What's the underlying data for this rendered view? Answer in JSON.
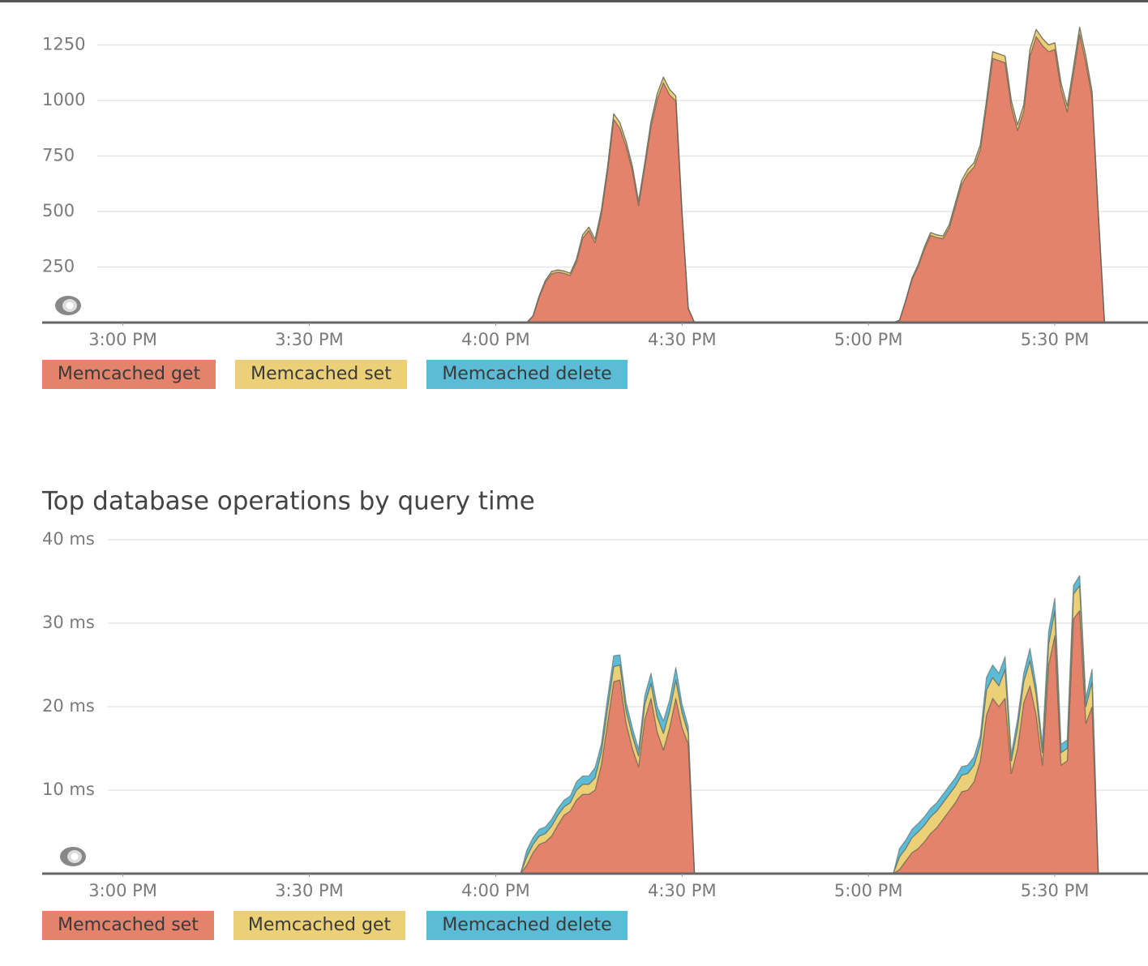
{
  "chart_data": [
    {
      "type": "stacked-area",
      "x": [
        "14:48",
        "16:04",
        "16:05",
        "16:06",
        "16:07",
        "16:08",
        "16:09",
        "16:10",
        "16:11",
        "16:12",
        "16:13",
        "16:14",
        "16:15",
        "16:16",
        "16:17",
        "16:18",
        "16:19",
        "16:20",
        "16:21",
        "16:22",
        "16:23",
        "16:24",
        "16:25",
        "16:26",
        "16:27",
        "16:28",
        "16:29",
        "16:30",
        "16:31",
        "16:32",
        "17:04",
        "17:05",
        "17:06",
        "17:07",
        "17:08",
        "17:09",
        "17:10",
        "17:11",
        "17:12",
        "17:13",
        "17:14",
        "17:15",
        "17:16",
        "17:17",
        "17:18",
        "17:19",
        "17:20",
        "17:21",
        "17:22",
        "17:23",
        "17:24",
        "17:25",
        "17:26",
        "17:27",
        "17:28",
        "17:29",
        "17:30",
        "17:31",
        "17:32",
        "17:33",
        "17:34",
        "17:35",
        "17:36",
        "17:37",
        "17:38"
      ],
      "series": [
        {
          "name": "Memcached get",
          "color": "#e5826b",
          "values": [
            0,
            0,
            0,
            28,
            115,
            182,
            220,
            227,
            222,
            212,
            273,
            380,
            415,
            360,
            487,
            680,
            915,
            875,
            793,
            685,
            527,
            700,
            883,
            1005,
            1080,
            1025,
            998,
            488,
            62,
            0,
            0,
            10,
            97,
            194,
            252,
            330,
            393,
            383,
            378,
            426,
            524,
            622,
            670,
            700,
            778,
            975,
            1190,
            1180,
            1170,
            972,
            865,
            952,
            1200,
            1288,
            1248,
            1220,
            1230,
            1052,
            949,
            1122,
            1300,
            1170,
            1012,
            485,
            0
          ]
        },
        {
          "name": "Memcached set",
          "color": "#ecd078",
          "values": [
            0,
            0,
            0,
            2,
            5,
            8,
            10,
            10,
            10,
            10,
            12,
            15,
            15,
            15,
            18,
            20,
            25,
            25,
            22,
            20,
            18,
            20,
            22,
            25,
            25,
            25,
            22,
            12,
            3,
            0,
            0,
            0,
            3,
            6,
            8,
            10,
            12,
            12,
            12,
            14,
            16,
            18,
            20,
            20,
            22,
            25,
            30,
            30,
            30,
            28,
            25,
            28,
            30,
            32,
            32,
            30,
            30,
            28,
            26,
            28,
            30,
            30,
            28,
            15,
            0
          ]
        },
        {
          "name": "Memcached delete",
          "color": "#5bbcd8",
          "values": [
            0,
            0,
            0,
            0,
            0,
            0,
            0,
            0,
            0,
            0,
            0,
            0,
            0,
            0,
            0,
            0,
            0,
            0,
            0,
            0,
            0,
            0,
            0,
            0,
            0,
            0,
            0,
            0,
            0,
            0,
            0,
            0,
            0,
            0,
            0,
            0,
            0,
            0,
            0,
            0,
            0,
            0,
            0,
            0,
            0,
            0,
            0,
            0,
            0,
            0,
            0,
            0,
            0,
            0,
            0,
            0,
            0,
            0,
            0,
            0,
            0,
            0,
            0,
            0,
            0
          ]
        }
      ],
      "xlim": [
        "14:47",
        "17:45"
      ],
      "xticks": [
        {
          "value": "15:00",
          "label": "3:00 PM"
        },
        {
          "value": "15:30",
          "label": "3:30 PM"
        },
        {
          "value": "16:00",
          "label": "4:00 PM"
        },
        {
          "value": "16:30",
          "label": "4:30 PM"
        },
        {
          "value": "17:00",
          "label": "5:00 PM"
        },
        {
          "value": "17:30",
          "label": "5:30 PM"
        }
      ],
      "ylim": [
        0,
        1400
      ],
      "yticks": [
        250,
        500,
        750,
        1000,
        1250
      ],
      "grid": true
    },
    {
      "type": "stacked-area",
      "title": "Top database operations by query time",
      "x": [
        "14:48",
        "16:04",
        "16:05",
        "16:06",
        "16:07",
        "16:08",
        "16:09",
        "16:10",
        "16:11",
        "16:12",
        "16:13",
        "16:14",
        "16:15",
        "16:16",
        "16:17",
        "16:18",
        "16:19",
        "16:20",
        "16:21",
        "16:22",
        "16:23",
        "16:24",
        "16:25",
        "16:26",
        "16:27",
        "16:28",
        "16:29",
        "16:30",
        "16:31",
        "16:32",
        "17:04",
        "17:05",
        "17:06",
        "17:07",
        "17:08",
        "17:09",
        "17:10",
        "17:11",
        "17:12",
        "17:13",
        "17:14",
        "17:15",
        "17:16",
        "17:17",
        "17:18",
        "17:19",
        "17:20",
        "17:21",
        "17:22",
        "17:23",
        "17:24",
        "17:25",
        "17:26",
        "17:27",
        "17:28",
        "17:29",
        "17:30",
        "17:31",
        "17:32",
        "17:33",
        "17:34",
        "17:35",
        "17:36",
        "17:37",
        "17:38"
      ],
      "series": [
        {
          "name": "Memcached set",
          "color": "#e5826b",
          "values": [
            0,
            0,
            1,
            2.5,
            3.5,
            3.8,
            4.5,
            5.8,
            7,
            7.5,
            8.8,
            9.5,
            9.5,
            10,
            13,
            18,
            23,
            23.2,
            18,
            15,
            12.8,
            18.5,
            21,
            17,
            14.8,
            17.5,
            21,
            17.5,
            15.5,
            0,
            0,
            0.5,
            1.5,
            2.5,
            3,
            3.8,
            4.8,
            5.5,
            6.5,
            7.5,
            8.5,
            9.8,
            10,
            11,
            13.5,
            19,
            21,
            20,
            21,
            12,
            15,
            20.5,
            22.5,
            19,
            13,
            25,
            28.5,
            13,
            13.5,
            30.5,
            31.5,
            18,
            20,
            0,
            0
          ]
        },
        {
          "name": "Memcached get",
          "color": "#ecd078",
          "values": [
            0,
            0,
            1,
            1,
            1,
            1,
            1.2,
            1.2,
            1,
            1,
            1.2,
            1.2,
            1.2,
            1.5,
            1.5,
            1.8,
            1.8,
            1.8,
            1.5,
            1.5,
            1.3,
            1.8,
            1.8,
            1.8,
            2,
            2,
            2.2,
            1.8,
            1.3,
            0,
            0,
            1.5,
            1.5,
            1.8,
            2,
            2,
            2,
            2,
            2,
            2,
            2,
            2,
            2,
            2,
            2,
            3,
            2.5,
            2.5,
            3.5,
            1.5,
            2.5,
            2.5,
            3,
            2.5,
            1.5,
            2.5,
            3,
            1.5,
            1.5,
            3,
            3,
            2,
            3,
            0,
            0
          ]
        },
        {
          "name": "Memcached delete",
          "color": "#5bbcd8",
          "values": [
            0,
            0,
            0.8,
            0.8,
            0.8,
            0.8,
            0.8,
            0.8,
            0.8,
            0.8,
            1,
            1,
            1,
            1.2,
            1,
            1.2,
            1.3,
            1.2,
            1,
            1,
            0.8,
            1,
            1.2,
            1.2,
            1.5,
            1.3,
            1.5,
            1,
            0.8,
            0,
            0,
            1,
            1,
            1,
            1,
            1,
            1,
            1,
            1,
            1,
            1,
            1,
            1,
            1,
            1,
            1.5,
            1.5,
            1.5,
            1.5,
            0.8,
            1,
            1,
            1.5,
            1,
            1,
            1.5,
            1.5,
            1,
            1,
            1,
            1.2,
            1,
            1.5,
            0,
            0
          ]
        }
      ],
      "xlim": [
        "14:47",
        "17:45"
      ],
      "xticks": [
        {
          "value": "15:00",
          "label": "3:00 PM"
        },
        {
          "value": "15:30",
          "label": "3:30 PM"
        },
        {
          "value": "16:00",
          "label": "4:00 PM"
        },
        {
          "value": "16:30",
          "label": "4:30 PM"
        },
        {
          "value": "17:00",
          "label": "5:00 PM"
        },
        {
          "value": "17:30",
          "label": "5:30 PM"
        }
      ],
      "ylim": [
        0,
        40
      ],
      "yticks": [
        {
          "value": 10,
          "label": "10 ms"
        },
        {
          "value": 20,
          "label": "20 ms"
        },
        {
          "value": 30,
          "label": "30 ms"
        },
        {
          "value": 40,
          "label": "40 ms"
        }
      ],
      "grid": true
    }
  ]
}
